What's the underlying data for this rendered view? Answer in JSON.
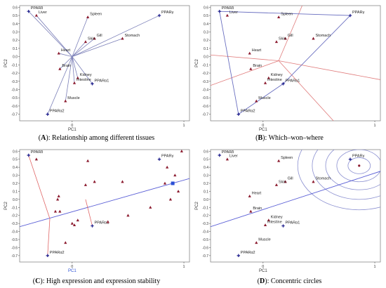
{
  "chart_data": [
    {
      "panel": "A",
      "type": "scatter",
      "caption_letter": "A",
      "caption_text": ": Relationship among different tissues",
      "xlabel": "PC1",
      "ylabel": "PC2",
      "xlim": [
        -0.47,
        1.05
      ],
      "ylim": [
        -0.78,
        0.62
      ],
      "xticks": [
        0,
        1
      ],
      "yticks": [
        -0.7,
        -0.6,
        -0.5,
        -0.4,
        -0.3,
        -0.2,
        -0.1,
        0,
        0.1,
        0.2,
        0.3,
        0.4,
        0.5,
        0.6
      ],
      "origin_rays": true,
      "points": [
        {
          "label": "PPARδ",
          "x": -0.39,
          "y": 0.55,
          "kind": "gene"
        },
        {
          "label": "Liver",
          "x": -0.32,
          "y": 0.5,
          "kind": "tissue"
        },
        {
          "label": "Spleen",
          "x": 0.14,
          "y": 0.48,
          "kind": "tissue"
        },
        {
          "label": "PPARγ",
          "x": 0.78,
          "y": 0.5,
          "kind": "gene"
        },
        {
          "label": "Gill",
          "x": 0.2,
          "y": 0.22,
          "kind": "tissue"
        },
        {
          "label": "Skin",
          "x": 0.12,
          "y": 0.18,
          "kind": "tissue"
        },
        {
          "label": "Stomach",
          "x": 0.45,
          "y": 0.22,
          "kind": "tissue"
        },
        {
          "label": "Heart",
          "x": -0.12,
          "y": 0.04,
          "kind": "tissue"
        },
        {
          "label": "Brain",
          "x": -0.11,
          "y": -0.15,
          "kind": "tissue"
        },
        {
          "label": "Kidney",
          "x": 0.05,
          "y": -0.26,
          "kind": "tissue"
        },
        {
          "label": "Intestine",
          "x": 0.02,
          "y": -0.32,
          "kind": "tissue"
        },
        {
          "label": "PPARα1",
          "x": 0.18,
          "y": -0.33,
          "kind": "gene"
        },
        {
          "label": "Muscle",
          "x": -0.06,
          "y": -0.54,
          "kind": "tissue"
        },
        {
          "label": "PPARα2",
          "x": -0.22,
          "y": -0.7,
          "kind": "gene"
        }
      ]
    },
    {
      "panel": "B",
      "type": "scatter",
      "caption_letter": "B",
      "caption_text": ": Which–won–where",
      "xlabel": "PC1",
      "ylabel": "PC2",
      "xlim": [
        -0.47,
        1.05
      ],
      "ylim": [
        -0.78,
        0.62
      ],
      "xticks": [
        0,
        1
      ],
      "yticks": [
        -0.7,
        -0.6,
        -0.5,
        -0.4,
        -0.3,
        -0.2,
        -0.1,
        0,
        0.1,
        0.2,
        0.3,
        0.4,
        0.5,
        0.6
      ],
      "polygon": [
        "PPARδ",
        "PPARγ",
        "PPARα1",
        "PPARα2"
      ],
      "sector_rays": [
        [
          -0.47,
          -0.35
        ],
        [
          1.05,
          -0.28
        ],
        [
          0.35,
          0.62
        ],
        [
          0.63,
          -0.78
        ],
        [
          -0.47,
          0.02
        ]
      ],
      "points": [
        {
          "label": "PPARδ",
          "x": -0.39,
          "y": 0.55,
          "kind": "gene"
        },
        {
          "label": "Liver",
          "x": -0.32,
          "y": 0.5,
          "kind": "tissue"
        },
        {
          "label": "Spleen",
          "x": 0.14,
          "y": 0.48,
          "kind": "tissue"
        },
        {
          "label": "PPARγ",
          "x": 0.78,
          "y": 0.5,
          "kind": "gene"
        },
        {
          "label": "Gill",
          "x": 0.2,
          "y": 0.22,
          "kind": "tissue"
        },
        {
          "label": "Skin",
          "x": 0.12,
          "y": 0.18,
          "kind": "tissue"
        },
        {
          "label": "Stomach",
          "x": 0.45,
          "y": 0.22,
          "kind": "tissue"
        },
        {
          "label": "Heart",
          "x": -0.12,
          "y": 0.04,
          "kind": "tissue"
        },
        {
          "label": "Brain",
          "x": -0.11,
          "y": -0.15,
          "kind": "tissue"
        },
        {
          "label": "Kidney",
          "x": 0.05,
          "y": -0.26,
          "kind": "tissue"
        },
        {
          "label": "Intestine",
          "x": 0.02,
          "y": -0.32,
          "kind": "tissue"
        },
        {
          "label": "PPARα1",
          "x": 0.18,
          "y": -0.33,
          "kind": "gene"
        },
        {
          "label": "Muscle",
          "x": -0.06,
          "y": -0.54,
          "kind": "tissue"
        },
        {
          "label": "PPARα2",
          "x": -0.22,
          "y": -0.7,
          "kind": "gene"
        }
      ]
    },
    {
      "panel": "C",
      "type": "scatter",
      "caption_letter": "C",
      "caption_text": ": High expression and expression stability",
      "xlabel": "PC1",
      "ylabel": "PC2",
      "xlim": [
        -0.47,
        1.05
      ],
      "ylim": [
        -0.78,
        0.62
      ],
      "xticks": [
        0,
        1
      ],
      "yticks": [
        -0.7,
        -0.6,
        -0.5,
        -0.4,
        -0.3,
        -0.2,
        -0.1,
        0,
        0.1,
        0.2,
        0.3,
        0.4,
        0.5,
        0.6
      ],
      "axis_line": [
        [
          -0.47,
          -0.34
        ],
        [
          1.05,
          0.26
        ]
      ],
      "average_point": [
        0.9,
        0.2
      ],
      "projections": [
        {
          "from": [
            -0.39,
            0.55
          ],
          "to": [
            -0.2,
            -0.24
          ]
        },
        {
          "from": [
            0.18,
            -0.33
          ],
          "to": [
            0.12,
            0.0
          ]
        },
        {
          "from": [
            -0.22,
            -0.7
          ],
          "to": [
            -0.2,
            -0.24
          ]
        }
      ],
      "points": [
        {
          "label": "PPARδ",
          "x": -0.39,
          "y": 0.55,
          "kind": "gene"
        },
        {
          "label": "",
          "x": -0.32,
          "y": 0.5,
          "kind": "tissue"
        },
        {
          "label": "",
          "x": 0.14,
          "y": 0.48,
          "kind": "tissue"
        },
        {
          "label": "PPARγ",
          "x": 0.78,
          "y": 0.5,
          "kind": "gene"
        },
        {
          "label": "",
          "x": 0.2,
          "y": 0.22,
          "kind": "tissue"
        },
        {
          "label": "",
          "x": 0.12,
          "y": 0.18,
          "kind": "tissue"
        },
        {
          "label": "",
          "x": 0.45,
          "y": 0.22,
          "kind": "tissue"
        },
        {
          "label": "",
          "x": -0.12,
          "y": 0.04,
          "kind": "tissue"
        },
        {
          "label": "",
          "x": -0.11,
          "y": -0.15,
          "kind": "tissue"
        },
        {
          "label": "",
          "x": 0.05,
          "y": -0.26,
          "kind": "tissue"
        },
        {
          "label": "",
          "x": 0.02,
          "y": -0.32,
          "kind": "tissue"
        },
        {
          "label": "PPARα1",
          "x": 0.18,
          "y": -0.33,
          "kind": "gene"
        },
        {
          "label": "",
          "x": -0.06,
          "y": -0.54,
          "kind": "tissue"
        },
        {
          "label": "PPARα2",
          "x": -0.22,
          "y": -0.7,
          "kind": "gene"
        },
        {
          "label": "",
          "x": 0.98,
          "y": 0.6,
          "kind": "tissue"
        },
        {
          "label": "",
          "x": 0.85,
          "y": 0.4,
          "kind": "tissue"
        },
        {
          "label": "",
          "x": 0.92,
          "y": 0.3,
          "kind": "tissue"
        },
        {
          "label": "",
          "x": 0.83,
          "y": 0.2,
          "kind": "tissue"
        },
        {
          "label": "",
          "x": 0.95,
          "y": 0.1,
          "kind": "tissue"
        },
        {
          "label": "",
          "x": 0.88,
          "y": 0.0,
          "kind": "tissue"
        },
        {
          "label": "",
          "x": 0.7,
          "y": -0.1,
          "kind": "tissue"
        },
        {
          "label": "",
          "x": 0.5,
          "y": -0.2,
          "kind": "tissue"
        },
        {
          "label": "",
          "x": 0.32,
          "y": -0.28,
          "kind": "tissue"
        },
        {
          "label": "",
          "x": 0.0,
          "y": -0.3,
          "kind": "tissue"
        },
        {
          "label": "",
          "x": -0.15,
          "y": -0.15,
          "kind": "tissue"
        },
        {
          "label": "",
          "x": -0.13,
          "y": 0.0,
          "kind": "tissue"
        }
      ]
    },
    {
      "panel": "D",
      "type": "scatter",
      "caption_letter": "D",
      "caption_text": ": Concentric circles",
      "xlabel": "PC1",
      "ylabel": "PC2",
      "xlim": [
        -0.47,
        1.05
      ],
      "ylim": [
        -0.78,
        0.62
      ],
      "xticks": [
        0,
        1
      ],
      "yticks": [
        -0.7,
        -0.6,
        -0.5,
        -0.4,
        -0.3,
        -0.2,
        -0.1,
        0,
        0.1,
        0.2,
        0.3,
        0.4,
        0.5,
        0.6
      ],
      "axis_line": [
        [
          -0.47,
          -0.34
        ],
        [
          1.05,
          0.35
        ]
      ],
      "ideal_point": [
        0.86,
        0.42
      ],
      "circle_radii": [
        0.1,
        0.2,
        0.3,
        0.42,
        0.55
      ],
      "points": [
        {
          "label": "PPARδ",
          "x": -0.39,
          "y": 0.55,
          "kind": "gene"
        },
        {
          "label": "Liver",
          "x": -0.32,
          "y": 0.5,
          "kind": "tissue"
        },
        {
          "label": "Spleen",
          "x": 0.14,
          "y": 0.48,
          "kind": "tissue"
        },
        {
          "label": "PPARγ",
          "x": 0.78,
          "y": 0.5,
          "kind": "gene"
        },
        {
          "label": "Gill",
          "x": 0.2,
          "y": 0.22,
          "kind": "tissue"
        },
        {
          "label": "Skin",
          "x": 0.12,
          "y": 0.18,
          "kind": "tissue"
        },
        {
          "label": "Stomach",
          "x": 0.45,
          "y": 0.22,
          "kind": "tissue"
        },
        {
          "label": "Heart",
          "x": -0.12,
          "y": 0.04,
          "kind": "tissue"
        },
        {
          "label": "Brain",
          "x": -0.11,
          "y": -0.15,
          "kind": "tissue"
        },
        {
          "label": "Kidney",
          "x": 0.05,
          "y": -0.26,
          "kind": "tissue"
        },
        {
          "label": "Intestine",
          "x": 0.02,
          "y": -0.32,
          "kind": "tissue"
        },
        {
          "label": "PPARα1",
          "x": 0.18,
          "y": -0.33,
          "kind": "gene"
        },
        {
          "label": "Muscle",
          "x": -0.06,
          "y": -0.54,
          "kind": "tissue"
        },
        {
          "label": "PPARα2",
          "x": -0.22,
          "y": -0.7,
          "kind": "gene"
        }
      ]
    }
  ],
  "colors": {
    "frame": "#888888",
    "gene": "#1b1b8a",
    "tissue": "#8b1a2e",
    "vector": "#7b7fb8",
    "polygon": "#6a6fc0",
    "sector": "#e07b7b",
    "axis_line": "#5a5fd6",
    "projection": "#e06666",
    "circle": "#8a8fd0",
    "avg_marker": "#2a4fd6",
    "c_xlabel": "#2a4fd6"
  }
}
